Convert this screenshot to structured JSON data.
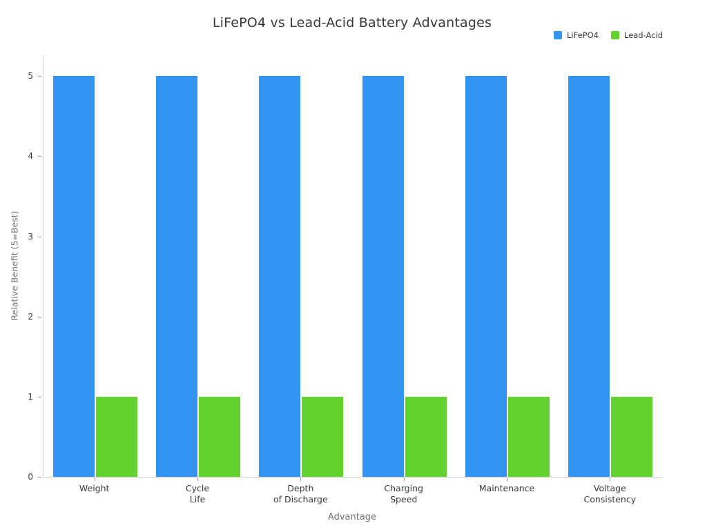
{
  "chart_data": {
    "type": "bar",
    "title": "LiFePO4 vs Lead-Acid Battery Advantages",
    "xlabel": "Advantage",
    "ylabel": "Relative Benefit (5=Best)",
    "categories": [
      "Weight",
      "Cycle\nLife",
      "Depth\nof Discharge",
      "Charging\nSpeed",
      "Maintenance",
      "Voltage\nConsistency"
    ],
    "series": [
      {
        "name": "LiFePO4",
        "color": "#3295f2",
        "values": [
          5,
          5,
          5,
          5,
          5,
          5
        ]
      },
      {
        "name": "Lead-Acid",
        "color": "#62d32e",
        "values": [
          1,
          1,
          1,
          1,
          1,
          1
        ]
      }
    ],
    "yticks": [
      0,
      1,
      2,
      3,
      4,
      5
    ],
    "ylim": [
      0,
      5.26
    ],
    "grid": false,
    "legend_position": "top-right",
    "colors": {
      "axis_line": "#d4d4d4",
      "tick_mark": "#9a9a9a",
      "tick_text": "#3a3a3a",
      "axis_title_text": "#757575",
      "title_text": "#3a3a3a",
      "background": "#ffffff"
    }
  }
}
